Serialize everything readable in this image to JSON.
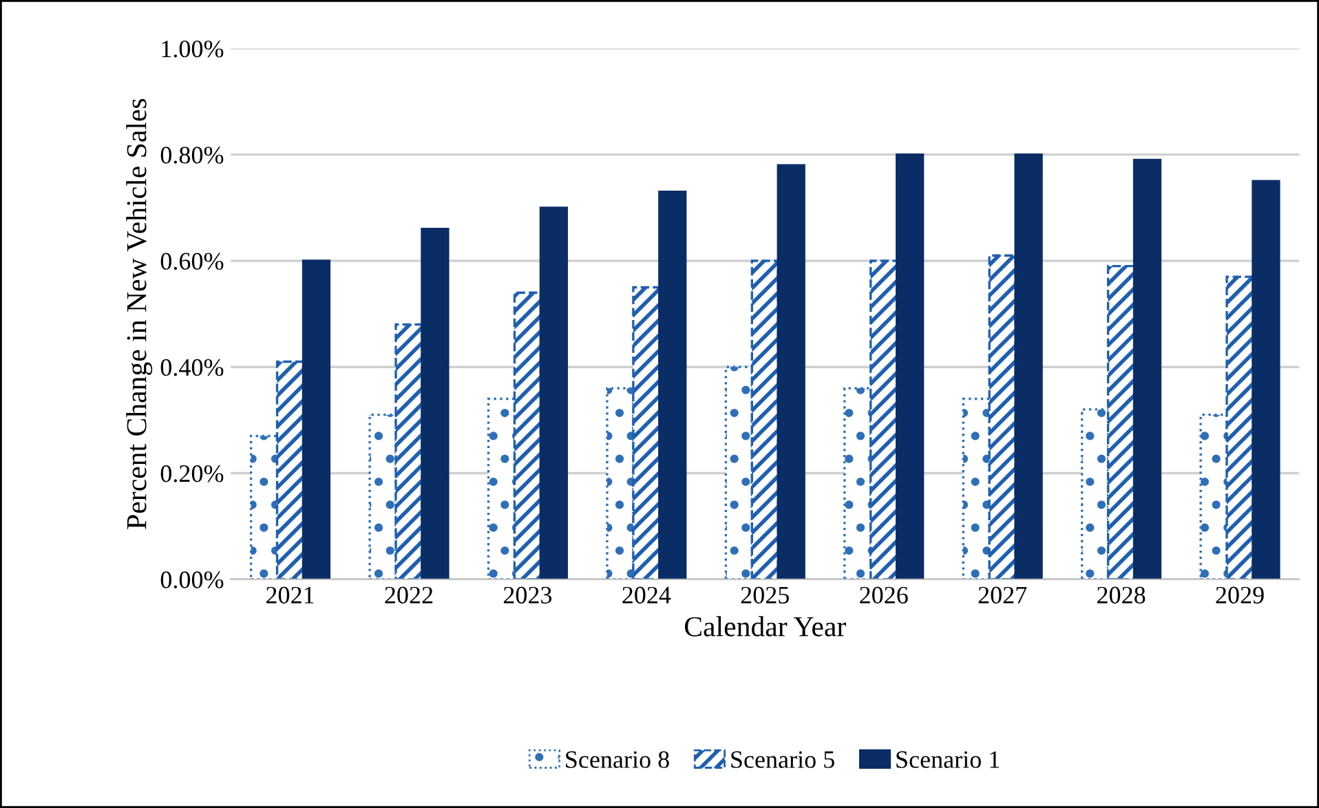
{
  "chart_data": {
    "type": "bar",
    "xlabel": "Calendar Year",
    "ylabel": "Percent Change in New Vehicle Sales",
    "categories": [
      "2021",
      "2022",
      "2023",
      "2024",
      "2025",
      "2026",
      "2027",
      "2028",
      "2029"
    ],
    "series": [
      {
        "name": "Scenario 8",
        "color": "#2e6fb8",
        "values": [
          0.27,
          0.31,
          0.34,
          0.36,
          0.4,
          0.36,
          0.34,
          0.32,
          0.31
        ]
      },
      {
        "name": "Scenario 5",
        "color": "#1f5fb0",
        "values": [
          0.41,
          0.48,
          0.54,
          0.55,
          0.6,
          0.6,
          0.61,
          0.59,
          0.57
        ]
      },
      {
        "name": "Scenario 1",
        "color": "#0b2d66",
        "values": [
          0.6,
          0.66,
          0.7,
          0.73,
          0.78,
          0.8,
          0.8,
          0.79,
          0.75
        ]
      }
    ],
    "ylim": [
      0,
      1.0
    ],
    "yticks": [
      {
        "value": 0,
        "label": "0.00%"
      },
      {
        "value": 0.2,
        "label": "0.20%"
      },
      {
        "value": 0.4,
        "label": "0.40%"
      },
      {
        "value": 0.6,
        "label": "0.60%"
      },
      {
        "value": 0.8,
        "label": "0.80%"
      },
      {
        "value": 1.0,
        "label": "1.00%"
      }
    ],
    "grid": "y",
    "legend": "bottom"
  }
}
